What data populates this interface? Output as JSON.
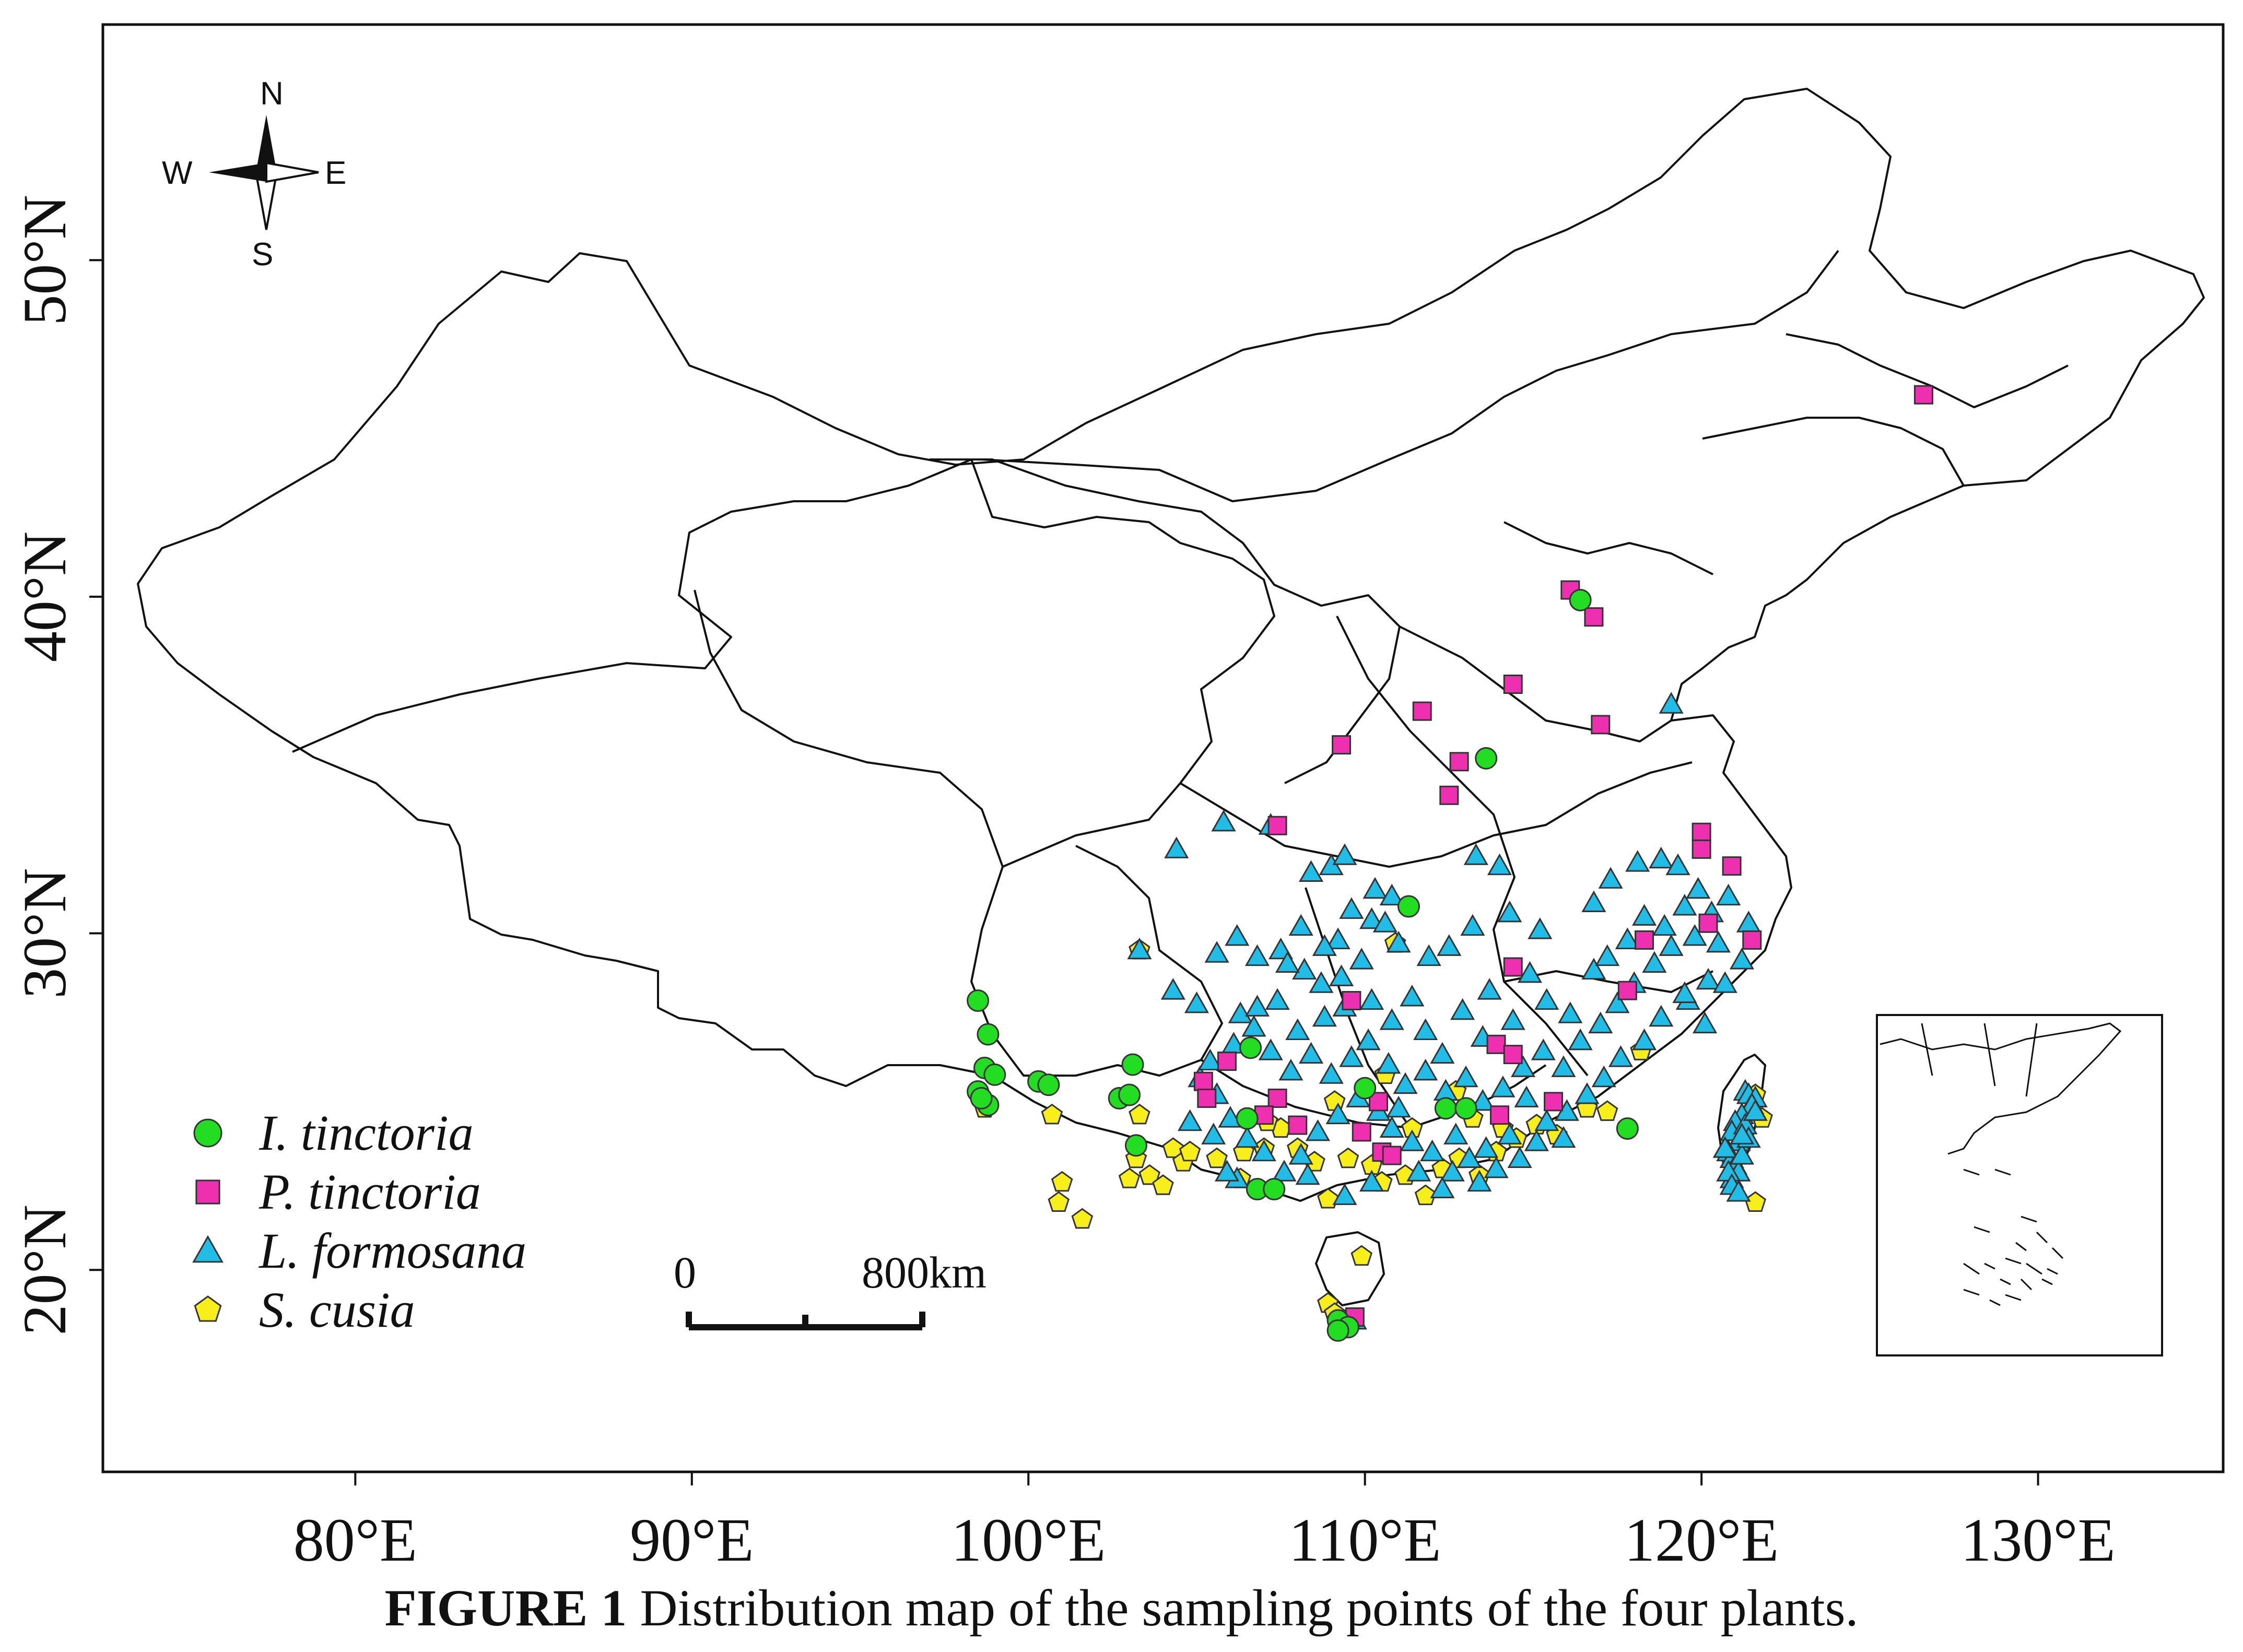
{
  "figure": {
    "caption_label": "FIGURE 1",
    "caption_text": " Distribution map of the sampling points of the four plants."
  },
  "map": {
    "lon_range": [
      72.5,
      135.5
    ],
    "lat_range": [
      14,
      57
    ],
    "x_ticks": [
      {
        "value": 80,
        "label": "80°E"
      },
      {
        "value": 90,
        "label": "90°E"
      },
      {
        "value": 100,
        "label": "100°E"
      },
      {
        "value": 110,
        "label": "110°E"
      },
      {
        "value": 120,
        "label": "120°E"
      },
      {
        "value": 130,
        "label": "130°E"
      }
    ],
    "y_ticks": [
      {
        "value": 20,
        "label": "20°N"
      },
      {
        "value": 30,
        "label": "30°N"
      },
      {
        "value": 40,
        "label": "40°N"
      },
      {
        "value": 50,
        "label": "50°N"
      }
    ]
  },
  "compass": {
    "north": "N",
    "south": "S",
    "east": "E",
    "west": "W"
  },
  "scale_bar": {
    "start_label": "0",
    "end_label": "800km",
    "length_deg_lon": 7
  },
  "legend": [
    {
      "name": "I. tinctoria",
      "shape": "circle",
      "color": "#22dd22"
    },
    {
      "name": "P. tinctoria",
      "shape": "square",
      "color": "#ee2fb0"
    },
    {
      "name": "L. formosana",
      "shape": "triangle",
      "color": "#22bde6"
    },
    {
      "name": "S. cusia",
      "shape": "pentagon",
      "color": "#f8ef1a"
    }
  ],
  "points": {
    "I. tinctoria": [
      [
        98.5,
        28
      ],
      [
        98.8,
        27
      ],
      [
        98.7,
        26
      ],
      [
        99,
        25.8
      ],
      [
        98.5,
        25.3
      ],
      [
        98.8,
        24.9
      ],
      [
        98.6,
        25.1
      ],
      [
        100.3,
        25.6
      ],
      [
        100.6,
        25.5
      ],
      [
        102.7,
        25.1
      ],
      [
        103,
        25.2
      ],
      [
        103.1,
        26.1
      ],
      [
        103.2,
        23.7
      ],
      [
        106.6,
        26.6
      ],
      [
        106.5,
        24.5
      ],
      [
        106.8,
        22.4
      ],
      [
        107.3,
        22.4
      ],
      [
        110,
        25.4
      ],
      [
        112.4,
        24.8
      ],
      [
        113,
        24.8
      ],
      [
        117.8,
        24.2
      ],
      [
        111.3,
        30.8
      ],
      [
        113.6,
        35.2
      ],
      [
        116.4,
        39.9
      ],
      [
        109.2,
        18.5
      ],
      [
        109.5,
        18.3
      ],
      [
        109.2,
        18.2
      ]
    ],
    "P. tinctoria": [
      [
        126.6,
        46
      ],
      [
        116.1,
        40.2
      ],
      [
        116.8,
        39.4
      ],
      [
        114.4,
        37.4
      ],
      [
        117,
        36.2
      ],
      [
        111.7,
        36.6
      ],
      [
        109.3,
        35.6
      ],
      [
        112.8,
        35.1
      ],
      [
        112.5,
        34.1
      ],
      [
        107.4,
        33.2
      ],
      [
        120,
        33
      ],
      [
        120,
        32.5
      ],
      [
        120.9,
        32
      ],
      [
        118.3,
        29.8
      ],
      [
        120.2,
        30.3
      ],
      [
        121.5,
        29.8
      ],
      [
        114.4,
        29
      ],
      [
        117.8,
        28.3
      ],
      [
        109.6,
        28
      ],
      [
        105.9,
        26.2
      ],
      [
        105.2,
        25.6
      ],
      [
        105.3,
        25.1
      ],
      [
        107.4,
        25.1
      ],
      [
        107,
        24.6
      ],
      [
        110.4,
        25
      ],
      [
        114,
        24.6
      ],
      [
        115.6,
        25
      ],
      [
        113.9,
        26.7
      ],
      [
        114.4,
        26.4
      ],
      [
        110.5,
        23.5
      ],
      [
        110.8,
        23.4
      ],
      [
        109.9,
        24.1
      ],
      [
        108,
        24.3
      ],
      [
        109.7,
        18.6
      ]
    ],
    "L. formosana": [
      [
        104.4,
        32.5
      ],
      [
        105.8,
        33.3
      ],
      [
        107.2,
        33.2
      ],
      [
        108.4,
        31.8
      ],
      [
        109,
        32
      ],
      [
        109.4,
        32.3
      ],
      [
        110.3,
        31.3
      ],
      [
        110.8,
        31.1
      ],
      [
        110.2,
        30.4
      ],
      [
        109.6,
        30.7
      ],
      [
        109.2,
        29.8
      ],
      [
        108.8,
        29.6
      ],
      [
        108.1,
        30.2
      ],
      [
        107.5,
        29.5
      ],
      [
        106.8,
        29.3
      ],
      [
        106.2,
        29.9
      ],
      [
        105.6,
        29.4
      ],
      [
        103.3,
        29.5
      ],
      [
        104.3,
        28.3
      ],
      [
        105,
        27.9
      ],
      [
        106.3,
        27.6
      ],
      [
        106.8,
        27.8
      ],
      [
        107.4,
        28
      ],
      [
        108,
        27.1
      ],
      [
        108.8,
        27.5
      ],
      [
        109.4,
        27.8
      ],
      [
        110.2,
        28
      ],
      [
        110.8,
        27.4
      ],
      [
        111.4,
        28.1
      ],
      [
        111.8,
        27.1
      ],
      [
        112.3,
        26.4
      ],
      [
        112.9,
        27.7
      ],
      [
        113.5,
        26.9
      ],
      [
        113.7,
        28.3
      ],
      [
        114.4,
        27.4
      ],
      [
        114.9,
        28.8
      ],
      [
        115.4,
        28
      ],
      [
        116.1,
        27.6
      ],
      [
        116.8,
        28.9
      ],
      [
        117.2,
        29.3
      ],
      [
        117.8,
        29.8
      ],
      [
        118.3,
        30.5
      ],
      [
        118.9,
        30.2
      ],
      [
        119.5,
        30.8
      ],
      [
        119.9,
        31.3
      ],
      [
        120.3,
        30.6
      ],
      [
        120.8,
        31.1
      ],
      [
        121.4,
        30.3
      ],
      [
        120.2,
        28.6
      ],
      [
        119.6,
        28
      ],
      [
        118.8,
        27.5
      ],
      [
        118.3,
        26.8
      ],
      [
        117.6,
        26.3
      ],
      [
        117.1,
        25.7
      ],
      [
        116.6,
        25.2
      ],
      [
        116,
        24.7
      ],
      [
        115.4,
        24.4
      ],
      [
        114.8,
        25.1
      ],
      [
        114.3,
        24
      ],
      [
        113.6,
        23.6
      ],
      [
        113.1,
        23.3
      ],
      [
        112.6,
        22.9
      ],
      [
        112,
        23.5
      ],
      [
        111.4,
        23.8
      ],
      [
        110.8,
        24.2
      ],
      [
        110.4,
        24.7
      ],
      [
        109.8,
        25.1
      ],
      [
        109.2,
        24.6
      ],
      [
        108.6,
        24.1
      ],
      [
        108.1,
        23.4
      ],
      [
        107.6,
        22.9
      ],
      [
        107,
        23.5
      ],
      [
        106.5,
        23.9
      ],
      [
        106,
        24.5
      ],
      [
        105.6,
        25.2
      ],
      [
        105.1,
        25.7
      ],
      [
        105.4,
        26.2
      ],
      [
        106.1,
        26.7
      ],
      [
        106.7,
        27.2
      ],
      [
        107.2,
        26.5
      ],
      [
        107.8,
        25.9
      ],
      [
        108.4,
        26.4
      ],
      [
        109,
        25.8
      ],
      [
        109.6,
        26.3
      ],
      [
        110.1,
        26.8
      ],
      [
        110.7,
        26.1
      ],
      [
        111.2,
        25.5
      ],
      [
        111.8,
        25.9
      ],
      [
        112.4,
        25.3
      ],
      [
        113,
        25.7
      ],
      [
        113.5,
        25
      ],
      [
        114.1,
        25.4
      ],
      [
        114.7,
        26
      ],
      [
        115.3,
        26.5
      ],
      [
        115.9,
        26
      ],
      [
        116.4,
        26.8
      ],
      [
        117,
        27.3
      ],
      [
        117.5,
        27.9
      ],
      [
        118,
        28.5
      ],
      [
        118.6,
        29.1
      ],
      [
        119.1,
        29.6
      ],
      [
        119.5,
        28.2
      ],
      [
        120.1,
        27.3
      ],
      [
        120.7,
        28.5
      ],
      [
        121.2,
        29.2
      ],
      [
        120.5,
        29.7
      ],
      [
        119.8,
        29.9
      ],
      [
        114.3,
        30.6
      ],
      [
        115.2,
        30.1
      ],
      [
        113.2,
        30.2
      ],
      [
        112.5,
        29.6
      ],
      [
        111.9,
        29.3
      ],
      [
        111,
        29.7
      ],
      [
        110.6,
        30.3
      ],
      [
        109.9,
        29.2
      ],
      [
        109.3,
        28.7
      ],
      [
        108.7,
        28.5
      ],
      [
        108.2,
        28.9
      ],
      [
        107.7,
        29.1
      ],
      [
        113.3,
        32.3
      ],
      [
        114,
        32
      ],
      [
        116.8,
        30.9
      ],
      [
        117.3,
        31.6
      ],
      [
        118.1,
        32.1
      ],
      [
        118.8,
        32.2
      ],
      [
        119.3,
        32
      ],
      [
        119.1,
        36.8
      ],
      [
        121.3,
        25.3
      ],
      [
        121.4,
        25.2
      ],
      [
        121.6,
        25.1
      ],
      [
        121.5,
        24.9
      ],
      [
        121.2,
        24.6
      ],
      [
        121,
        24.4
      ],
      [
        120.9,
        24.1
      ],
      [
        121.3,
        24.3
      ],
      [
        121.6,
        24.7
      ],
      [
        121.1,
        23.8
      ],
      [
        120.8,
        23.5
      ],
      [
        120.9,
        23.3
      ],
      [
        121,
        23.1
      ],
      [
        120.7,
        23.6
      ],
      [
        121.1,
        22.9
      ],
      [
        120.9,
        22.7
      ],
      [
        121.2,
        23.4
      ],
      [
        121.4,
        23.9
      ],
      [
        120.8,
        22.9
      ],
      [
        120.9,
        22.5
      ],
      [
        121.1,
        22.3
      ],
      [
        121.2,
        24
      ],
      [
        109.7,
        18.5
      ],
      [
        111,
        24.8
      ],
      [
        112.7,
        24
      ],
      [
        113.9,
        23
      ],
      [
        114.6,
        23.3
      ],
      [
        115.1,
        23.8
      ],
      [
        115.9,
        23.9
      ],
      [
        105.5,
        24
      ],
      [
        106.2,
        22.7
      ],
      [
        108.3,
        22.8
      ],
      [
        109.4,
        22.2
      ],
      [
        110.2,
        22.6
      ],
      [
        111.6,
        22.9
      ],
      [
        112.3,
        22.4
      ],
      [
        113.4,
        22.6
      ],
      [
        104.8,
        24.4
      ],
      [
        105.9,
        22.9
      ]
    ],
    "S. cusia": [
      [
        103.3,
        29.5
      ],
      [
        110.9,
        29.7
      ],
      [
        98.7,
        24.8
      ],
      [
        100.7,
        24.6
      ],
      [
        101,
        22.6
      ],
      [
        100.9,
        22
      ],
      [
        101.6,
        21.5
      ],
      [
        103,
        22.7
      ],
      [
        103.3,
        24.6
      ],
      [
        103.6,
        22.8
      ],
      [
        104,
        22.5
      ],
      [
        104.3,
        23.6
      ],
      [
        104.6,
        23.2
      ],
      [
        105.6,
        23.3
      ],
      [
        106.4,
        23.5
      ],
      [
        107,
        23.6
      ],
      [
        107.5,
        24.2
      ],
      [
        108,
        23.6
      ],
      [
        108.5,
        23.2
      ],
      [
        108.9,
        22.1
      ],
      [
        109.5,
        23.3
      ],
      [
        110.5,
        22.6
      ],
      [
        111.2,
        22.8
      ],
      [
        111.8,
        22.2
      ],
      [
        112.3,
        23
      ],
      [
        112.8,
        23.3
      ],
      [
        113.4,
        22.8
      ],
      [
        113.9,
        23.5
      ],
      [
        114.5,
        23.9
      ],
      [
        115.1,
        24.3
      ],
      [
        115.7,
        24
      ],
      [
        116.6,
        24.8
      ],
      [
        117.2,
        24.7
      ],
      [
        118.2,
        26.5
      ],
      [
        121.6,
        22
      ],
      [
        121.8,
        24.5
      ],
      [
        121.6,
        25.2
      ],
      [
        109.9,
        20.4
      ],
      [
        108.9,
        19
      ],
      [
        109.1,
        18.7
      ],
      [
        112.7,
        25.3
      ],
      [
        113.2,
        24.5
      ],
      [
        114.1,
        24.2
      ],
      [
        111.4,
        24.2
      ],
      [
        110.6,
        25.8
      ],
      [
        109.1,
        25
      ],
      [
        107.1,
        24.4
      ],
      [
        103.2,
        23.3
      ],
      [
        104.8,
        23.5
      ],
      [
        106.3,
        22.7
      ],
      [
        110.2,
        23.1
      ]
    ]
  }
}
